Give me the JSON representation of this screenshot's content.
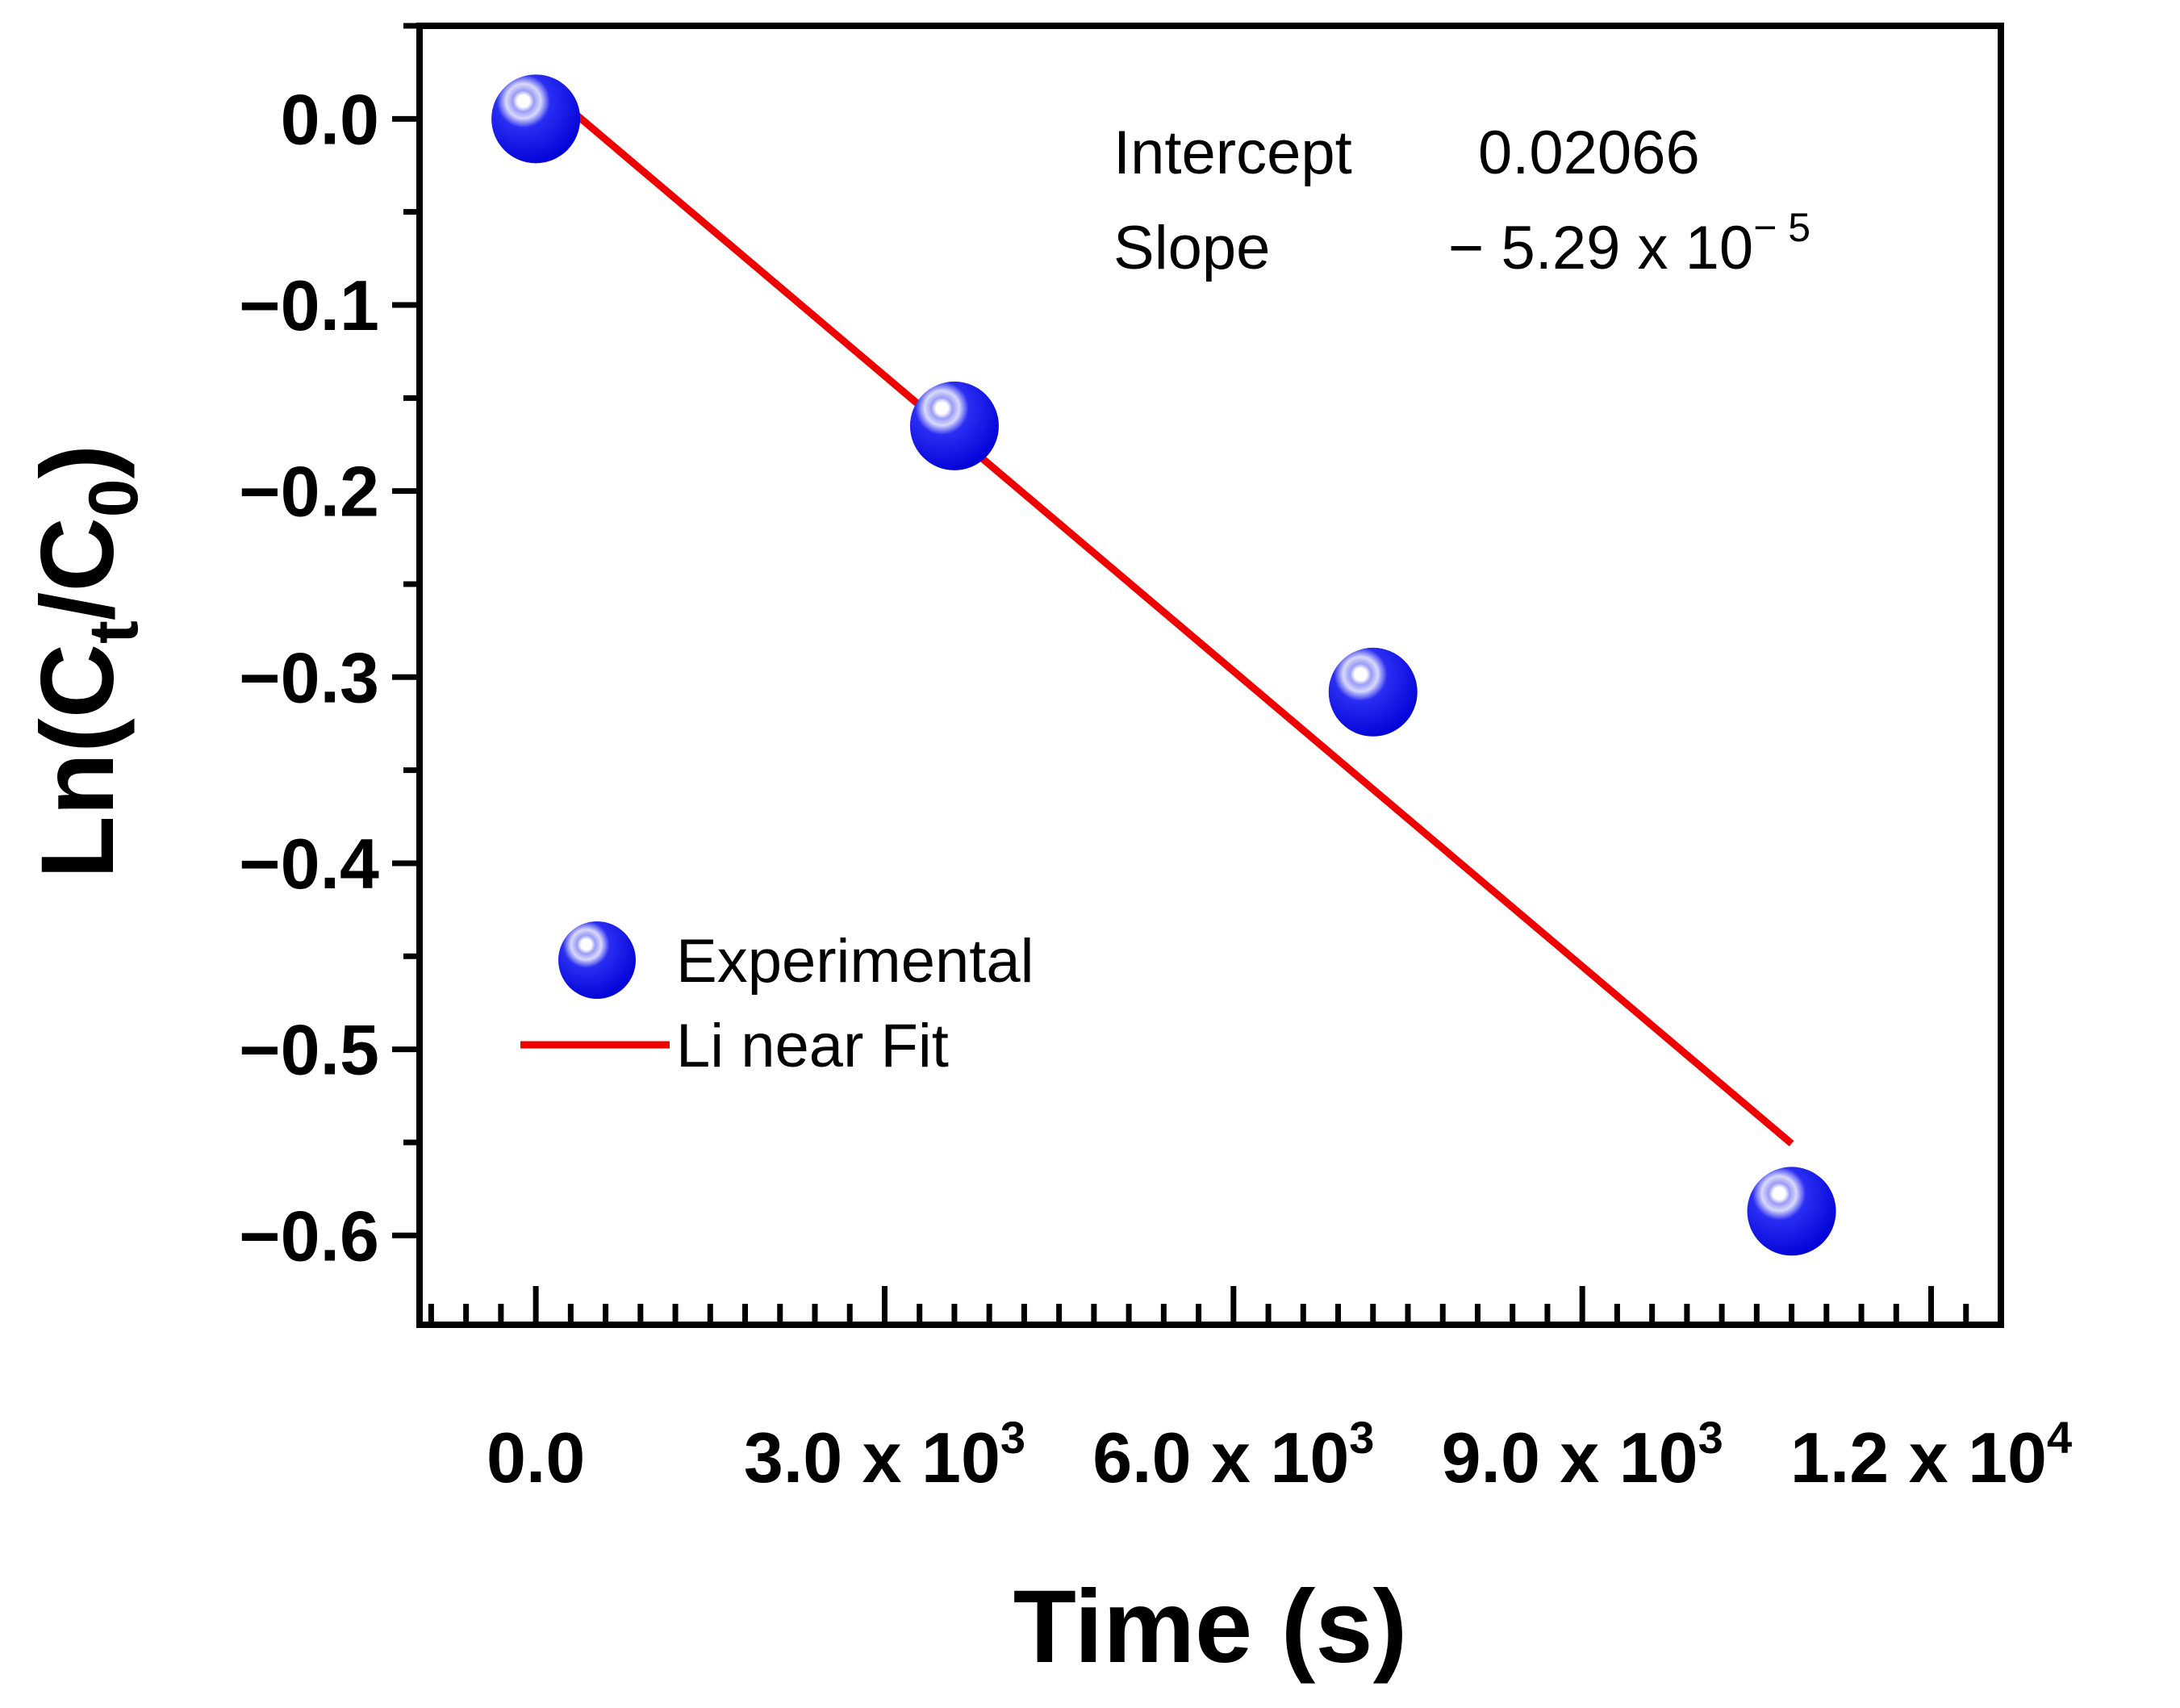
{
  "chart_data": {
    "type": "scatter",
    "title": "",
    "xlabel": "Time (s)",
    "ylabel": {
      "prefix": "Ln(C",
      "sub1": "t",
      "mid": "/C",
      "sub2": "0",
      "suffix": ")"
    },
    "xlim": [
      -1000,
      12600
    ],
    "ylim": [
      -0.648,
      0.05
    ],
    "x_ticks": [
      {
        "value": 0,
        "mantissa": "0.0",
        "exp": ""
      },
      {
        "value": 3000,
        "mantissa": "3.0 x 10",
        "exp": "3"
      },
      {
        "value": 6000,
        "mantissa": "6.0 x 10",
        "exp": "3"
      },
      {
        "value": 9000,
        "mantissa": "9.0 x 10",
        "exp": "3"
      },
      {
        "value": 12000,
        "mantissa": "1.2 x 10",
        "exp": "4"
      }
    ],
    "x_minor_step": 300,
    "y_ticks": [
      {
        "value": 0.0,
        "label": "0.0"
      },
      {
        "value": -0.1,
        "label": "−0.1"
      },
      {
        "value": -0.2,
        "label": "−0.2"
      },
      {
        "value": -0.3,
        "label": "−0.3"
      },
      {
        "value": -0.4,
        "label": "−0.4"
      },
      {
        "value": -0.5,
        "label": "−0.5"
      },
      {
        "value": -0.6,
        "label": "−0.6"
      }
    ],
    "y_minor_step": 0.05,
    "grid": false,
    "legend_position": "lower-left",
    "series": [
      {
        "name": "Experimental",
        "kind": "scatter",
        "color": "#0000ee",
        "x": [
          0,
          3600,
          7200,
          10800
        ],
        "y": [
          0.0,
          -0.165,
          -0.308,
          -0.587
        ]
      },
      {
        "name": "Li near Fit",
        "kind": "line",
        "color": "#ee0000",
        "x": [
          0,
          10800
        ],
        "y": [
          0.02066,
          -0.55066
        ]
      }
    ],
    "annotations": {
      "intercept_label": "Intercept",
      "intercept_value": "0.02066",
      "slope_label": "Slope",
      "slope_value": "− 5.29 x 10",
      "slope_exp": "− 5"
    }
  }
}
